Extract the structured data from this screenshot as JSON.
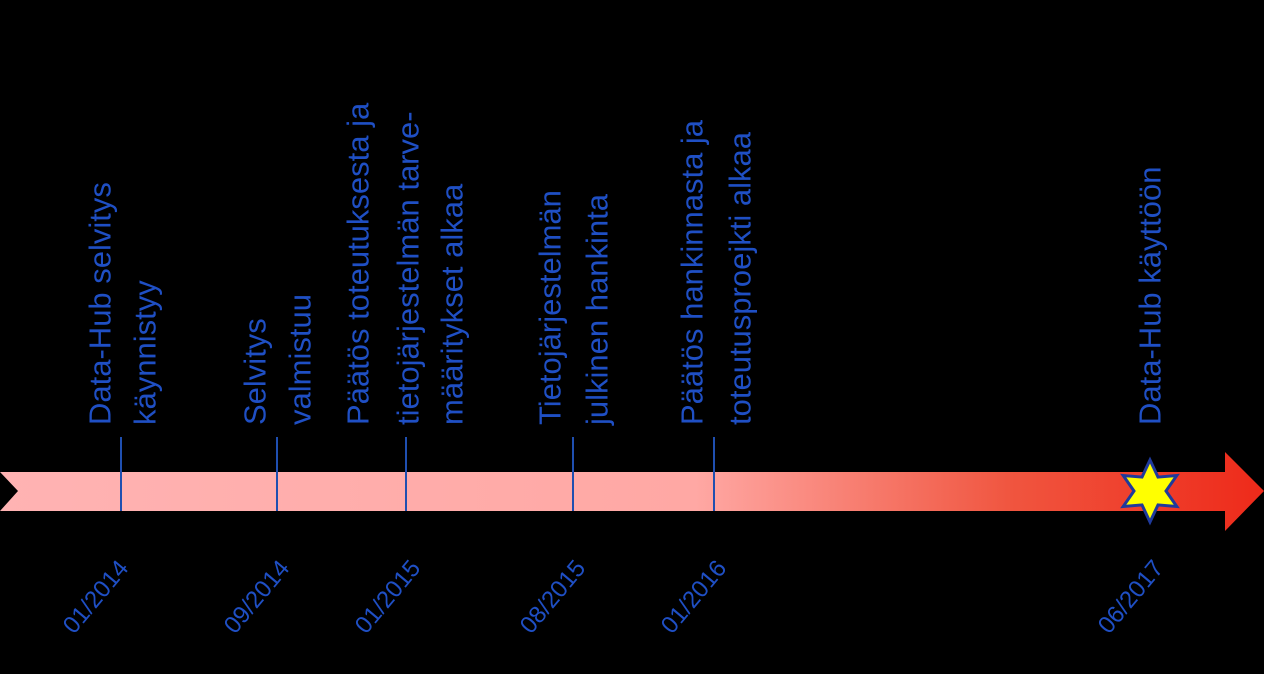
{
  "events": [
    {
      "lines": [
        "Data-Hub selvitys",
        "käynnistyy"
      ],
      "date": "01/2014"
    },
    {
      "lines": [
        "Selvitys",
        "valmistuu"
      ],
      "date": "09/2014"
    },
    {
      "lines": [
        "Päätös toteutuksesta ja",
        "tietojärjestelmän tarve-",
        "määritykset alkaa"
      ],
      "date": "01/2015"
    },
    {
      "lines": [
        "Tietojärjestelmän",
        "julkinen hankinta"
      ],
      "date": "08/2015"
    },
    {
      "lines": [
        "Päätös hankinnasta ja",
        "toteutusproejkti alkaa"
      ],
      "date": "01/2016"
    },
    {
      "lines": [
        "Data-Hub käyttöön"
      ],
      "date": "06/2017"
    }
  ]
}
